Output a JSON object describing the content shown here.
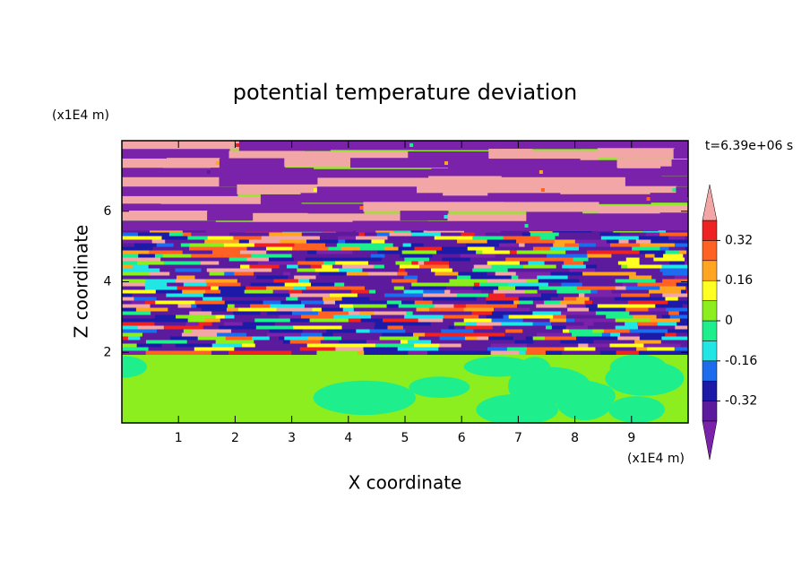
{
  "chart_data": {
    "type": "contour",
    "title": "potential temperature deviation",
    "x_label": "X coordinate",
    "y_label": "Z coordinate",
    "x_unit": "(x1E4 m)",
    "y_unit": "(x1E4 m)",
    "annotation": "t=6.39e+06 s",
    "xlim": [
      0,
      10
    ],
    "xticks": [
      1,
      2,
      3,
      4,
      5,
      6,
      7,
      8,
      9
    ],
    "ylim": [
      0,
      8
    ],
    "yticks": [
      2,
      4,
      6
    ],
    "colorbar": {
      "levels": [
        -0.4,
        -0.32,
        -0.24,
        -0.16,
        -0.08,
        0,
        0.08,
        0.16,
        0.24,
        0.32,
        0.4
      ],
      "colors": [
        "#5c1a9c",
        "#1c1aa6",
        "#1e6cee",
        "#22e6e6",
        "#1eee8c",
        "#8cee1e",
        "#ffff22",
        "#ffa522",
        "#ff6222",
        "#ee2222"
      ],
      "extend_low": "#7a22aa",
      "extend_high": "#f2a6a6",
      "ticks": [
        -0.32,
        -0.16,
        0,
        0.16,
        0.32
      ]
    }
  }
}
